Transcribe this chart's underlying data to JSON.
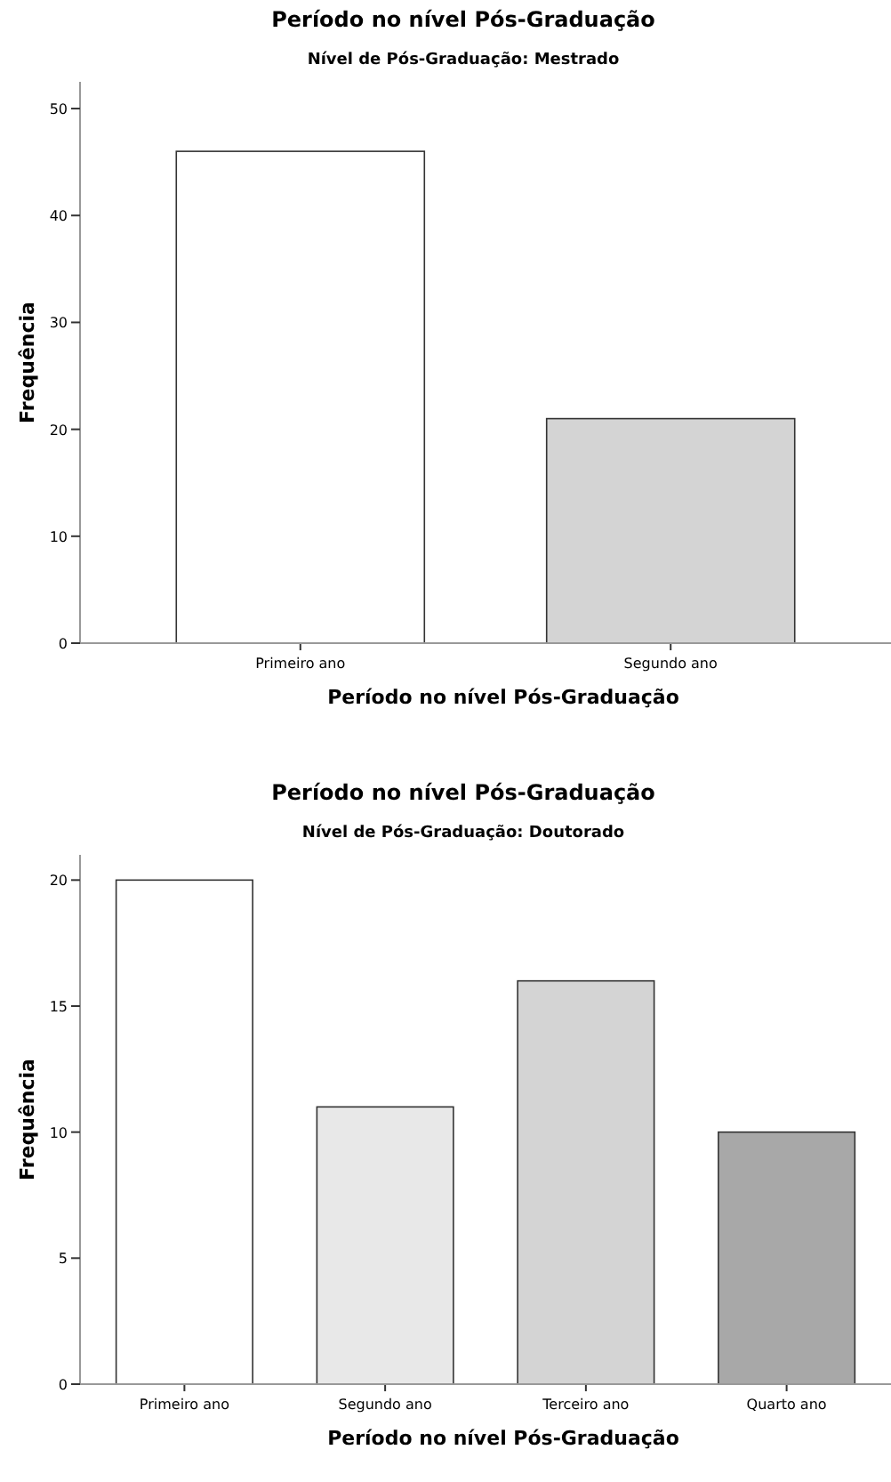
{
  "chart_data": [
    {
      "type": "bar",
      "title": "Período no nível Pós-Graduação",
      "subtitle": "Nível de Pós-Graduação: Mestrado",
      "xlabel": "Período no nível Pós-Graduação",
      "ylabel": "Frequência",
      "categories": [
        "Primeiro ano",
        "Segundo ano"
      ],
      "values": [
        46,
        21
      ],
      "colors": [
        "#ffffff",
        "#d4d4d4"
      ],
      "ylim": [
        0,
        52.5
      ],
      "yticks": [
        0,
        10,
        20,
        30,
        40,
        50
      ]
    },
    {
      "type": "bar",
      "title": "Período no nível Pós-Graduação",
      "subtitle": "Nível de Pós-Graduação: Doutorado",
      "xlabel": "Período no nível Pós-Graduação",
      "ylabel": "Frequência",
      "categories": [
        "Primeiro ano",
        "Segundo ano",
        "Terceiro ano",
        "Quarto ano"
      ],
      "values": [
        20,
        11,
        16,
        10
      ],
      "colors": [
        "#ffffff",
        "#e8e8e8",
        "#d4d4d4",
        "#a8a8a8"
      ],
      "ylim": [
        0,
        21
      ],
      "yticks": [
        0,
        5,
        10,
        15,
        20
      ]
    }
  ]
}
